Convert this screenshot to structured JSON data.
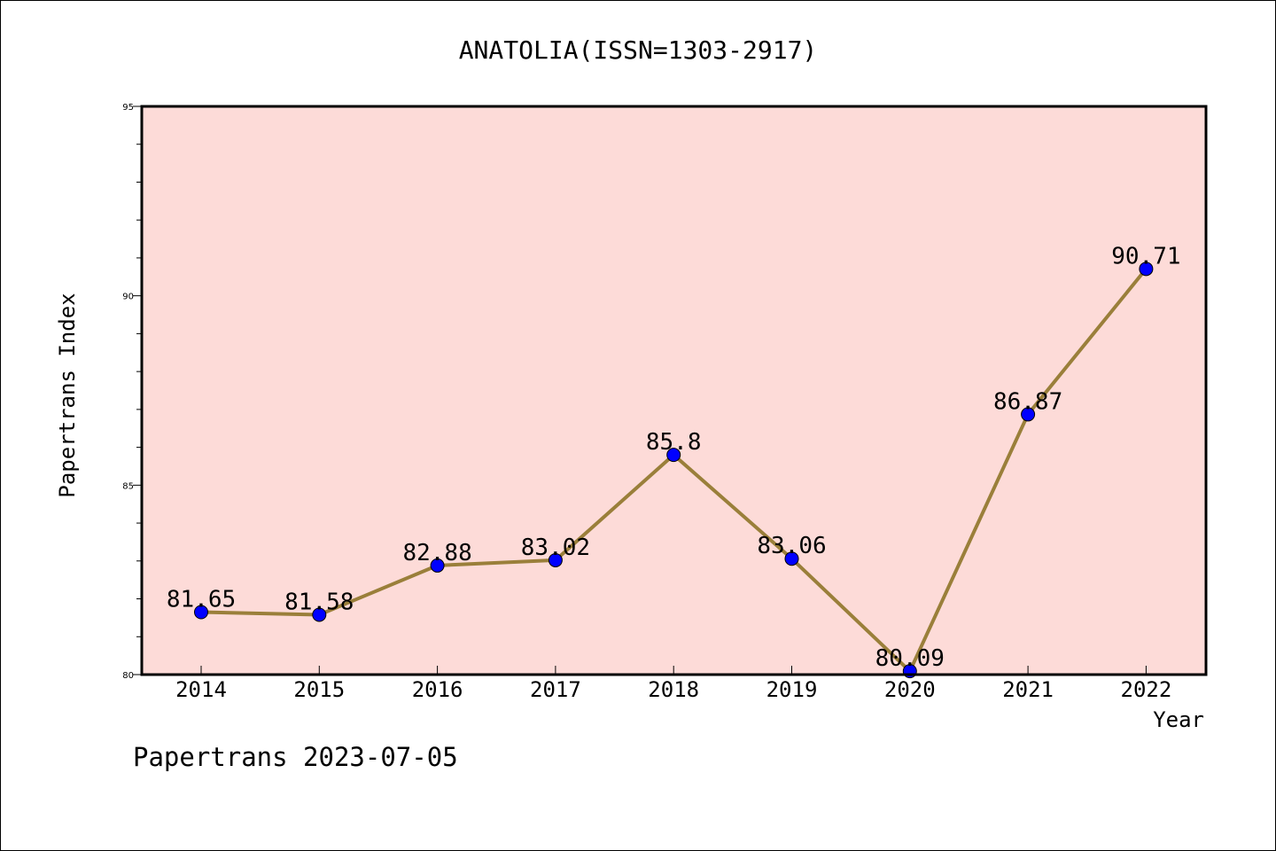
{
  "chart_data": {
    "type": "line",
    "title": "ANATOLIA(ISSN=1303-2917)",
    "xlabel": "Year",
    "ylabel": "Papertrans Index",
    "categories": [
      "2014",
      "2015",
      "2016",
      "2017",
      "2018",
      "2019",
      "2020",
      "2021",
      "2022"
    ],
    "values": [
      81.65,
      81.58,
      82.88,
      83.02,
      85.8,
      83.06,
      80.09,
      86.87,
      90.71
    ],
    "data_labels": [
      "81.65",
      "81.58",
      "82.88",
      "83.02",
      "85.8",
      "83.06",
      "80.09",
      "86.87",
      "90.71"
    ],
    "ylim": [
      80,
      95
    ],
    "y_ticks": [
      "80",
      "85",
      "90",
      "95"
    ],
    "grid": false,
    "legend": "none",
    "colors": {
      "plot_background": "#fddbd8",
      "line": "#9a7f3a",
      "marker": "#0000ff"
    }
  },
  "footer": {
    "text": "Papertrans 2023-07-05"
  }
}
